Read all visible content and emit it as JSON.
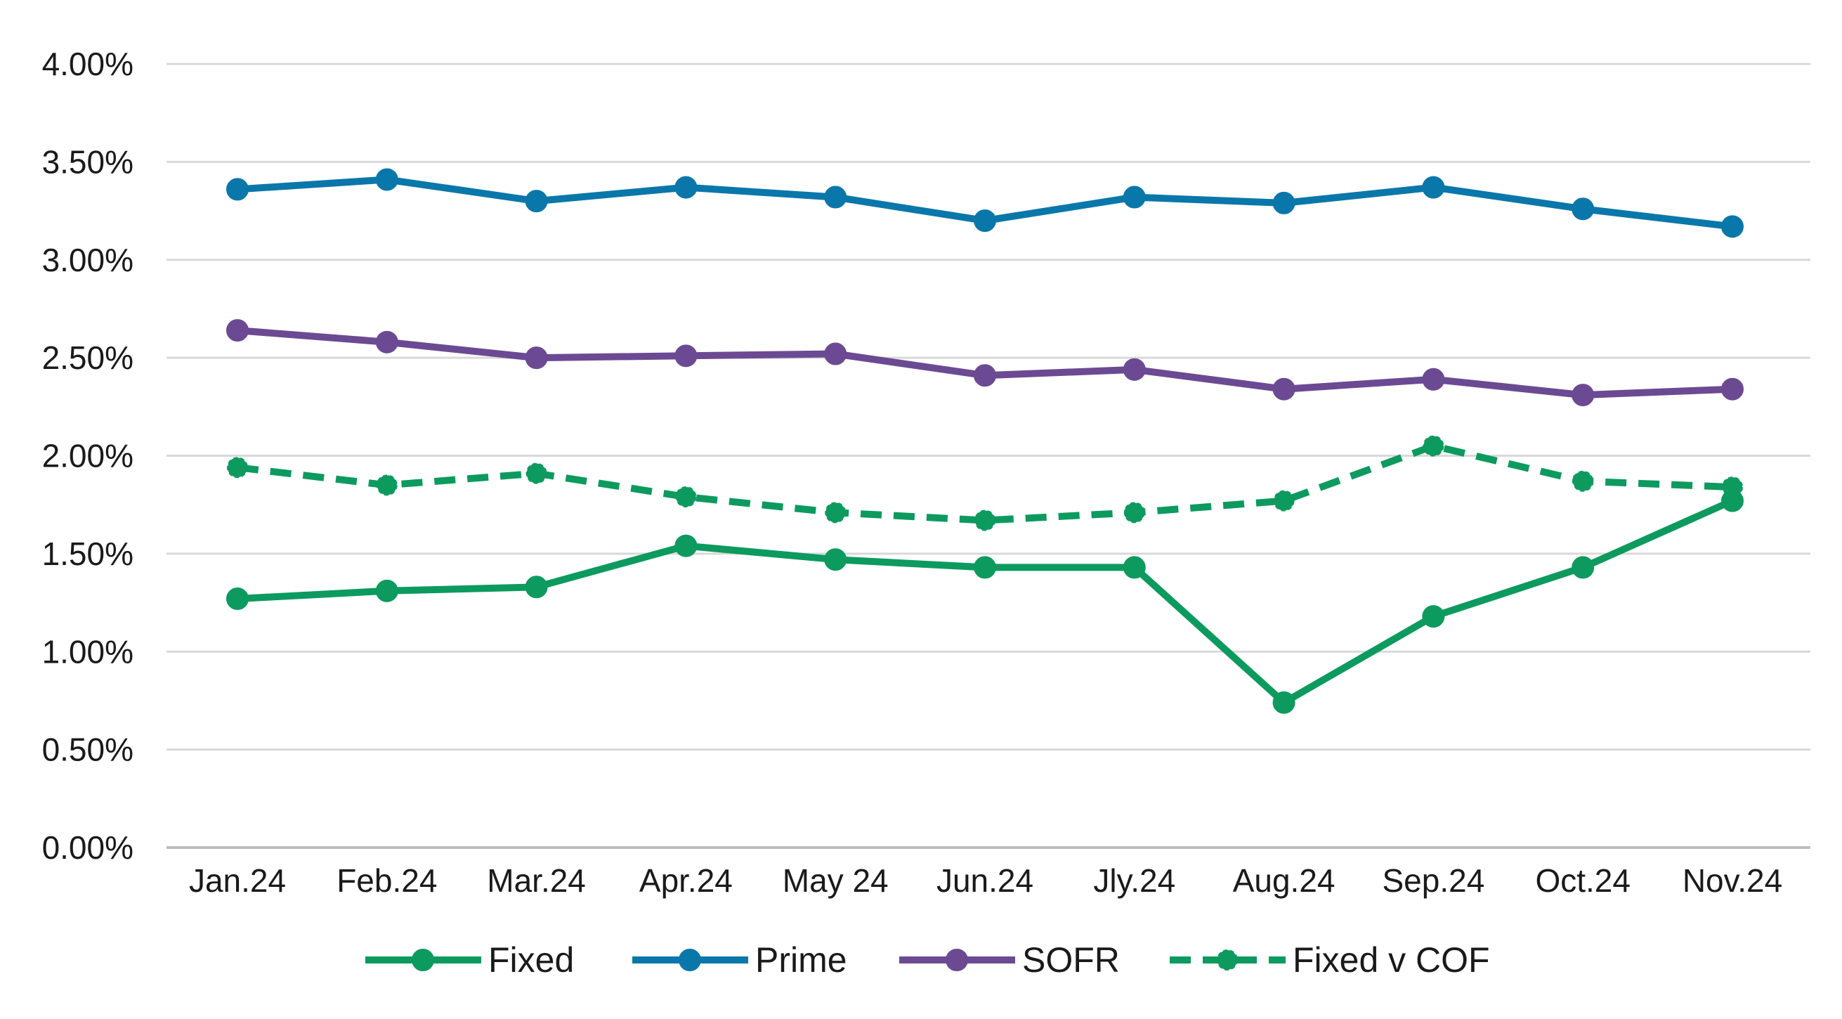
{
  "chart_data": {
    "type": "line",
    "title": "",
    "xlabel": "",
    "ylabel": "",
    "categories": [
      "Jan.24",
      "Feb.24",
      "Mar.24",
      "Apr.24",
      "May 24",
      "Jun.24",
      "Jly.24",
      "Aug.24",
      "Sep.24",
      "Oct.24",
      "Nov.24"
    ],
    "ylim": [
      0,
      4.0
    ],
    "yticks": [
      "0.00%",
      "0.50%",
      "1.00%",
      "1.50%",
      "2.00%",
      "2.50%",
      "3.00%",
      "3.50%",
      "4.00%"
    ],
    "grid": true,
    "legend_position": "bottom",
    "series": [
      {
        "name": "Fixed",
        "color": "#0d9a5f",
        "dashed": false,
        "values": [
          1.27,
          1.31,
          1.33,
          1.54,
          1.47,
          1.43,
          1.43,
          0.74,
          1.18,
          1.43,
          1.77
        ]
      },
      {
        "name": "Prime",
        "color": "#0a77aa",
        "dashed": false,
        "values": [
          3.36,
          3.41,
          3.3,
          3.37,
          3.32,
          3.2,
          3.32,
          3.29,
          3.37,
          3.26,
          3.17
        ]
      },
      {
        "name": "SOFR",
        "color": "#6b4a93",
        "dashed": false,
        "values": [
          2.64,
          2.58,
          2.5,
          2.51,
          2.52,
          2.41,
          2.44,
          2.34,
          2.39,
          2.31,
          2.34
        ]
      },
      {
        "name": "Fixed v COF",
        "color": "#0d9a5f",
        "dashed": true,
        "values": [
          1.94,
          1.85,
          1.91,
          1.79,
          1.71,
          1.67,
          1.71,
          1.77,
          2.05,
          1.87,
          1.84
        ]
      }
    ]
  }
}
